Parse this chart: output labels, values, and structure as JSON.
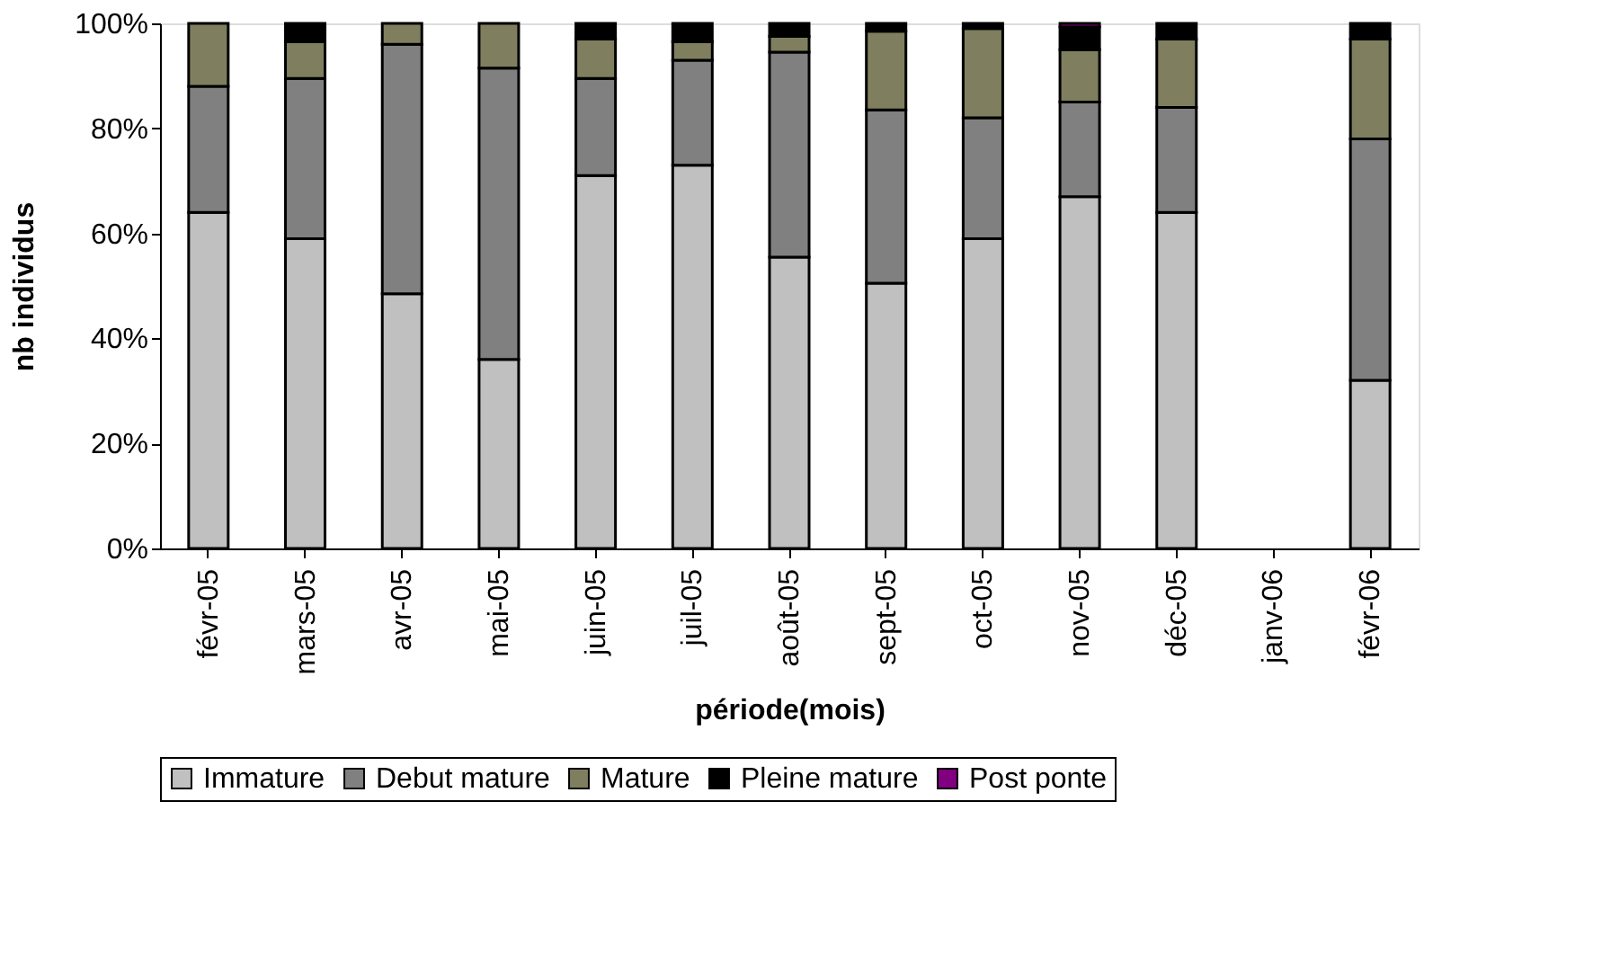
{
  "chart_data": {
    "type": "bar",
    "stacked": true,
    "xlabel": "période(mois)",
    "ylabel": "nb individus",
    "categories": [
      "févr-05",
      "mars-05",
      "avr-05",
      "mai-05",
      "juin-05",
      "juil-05",
      "août-05",
      "sept-05",
      "oct-05",
      "nov-05",
      "déc-05",
      "janv-06",
      "févr-06"
    ],
    "series": [
      {
        "name": "Immature",
        "color": "#c0c0c0",
        "values": [
          64,
          59,
          48.5,
          36,
          71,
          73,
          55.5,
          50.5,
          59,
          67,
          64,
          null,
          32
        ]
      },
      {
        "name": "Debut mature",
        "color": "#808080",
        "values": [
          24,
          30.5,
          47.5,
          55.5,
          18.5,
          20,
          39,
          33,
          23,
          18,
          20,
          null,
          46
        ]
      },
      {
        "name": "Mature",
        "color": "#7f7f5f",
        "values": [
          12,
          7,
          4,
          8.5,
          7.5,
          3.5,
          3,
          15,
          17,
          10,
          13,
          null,
          19
        ]
      },
      {
        "name": "Pleine mature",
        "color": "#000000",
        "values": [
          0,
          3.5,
          0,
          0,
          3,
          3.5,
          2.5,
          1.5,
          1,
          4.3,
          3,
          null,
          3
        ]
      },
      {
        "name": "Post ponte",
        "color": "#800080",
        "values": [
          0,
          0,
          0,
          0,
          0,
          0,
          0,
          0,
          0,
          0.7,
          0,
          null,
          0
        ]
      }
    ],
    "ylim": [
      0,
      100
    ],
    "yticks": [
      {
        "value": 0,
        "label": "0%"
      },
      {
        "value": 20,
        "label": "20%"
      },
      {
        "value": 40,
        "label": "40%"
      },
      {
        "value": 60,
        "label": "60%"
      },
      {
        "value": 80,
        "label": "80%"
      },
      {
        "value": 100,
        "label": "100%"
      }
    ],
    "grid": false,
    "legend": "bottom"
  }
}
